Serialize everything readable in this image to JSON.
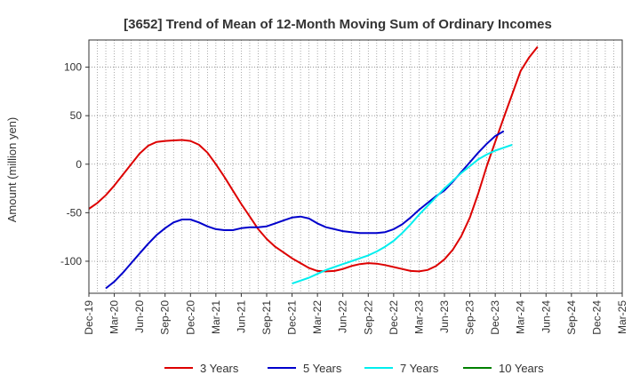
{
  "chart_data": {
    "type": "line",
    "title": "[3652]  Trend of Mean of 12-Month Moving Sum of Ordinary Incomes",
    "xlabel": "",
    "ylabel": "Amount (million yen)",
    "ylim": [
      -133,
      128
    ],
    "yticks": [
      100,
      50,
      0,
      -50,
      -100
    ],
    "ytick_labels": [
      "100",
      "50",
      "0",
      "-50",
      "-100"
    ],
    "x_range_months": [
      0,
      63
    ],
    "xticks": [
      0,
      3,
      6,
      9,
      12,
      15,
      18,
      21,
      24,
      27,
      30,
      33,
      36,
      39,
      42,
      45,
      48,
      51,
      54,
      57,
      60,
      63
    ],
    "xtick_labels": [
      "Dec-19",
      "Mar-20",
      "Jun-20",
      "Sep-20",
      "Dec-20",
      "Mar-21",
      "Jun-21",
      "Sep-21",
      "Dec-21",
      "Mar-22",
      "Jun-22",
      "Sep-22",
      "Dec-22",
      "Mar-23",
      "Jun-23",
      "Sep-23",
      "Dec-23",
      "Mar-24",
      "Jun-24",
      "Sep-24",
      "Dec-24",
      "Mar-25"
    ],
    "grid": true,
    "legend_position": "bottom",
    "series": [
      {
        "name": "3 Years",
        "color": "#dd0000",
        "x": [
          0,
          1,
          2,
          3,
          4,
          5,
          6,
          7,
          8,
          9,
          10,
          11,
          12,
          13,
          14,
          15,
          16,
          17,
          18,
          19,
          20,
          21,
          22,
          23,
          24,
          25,
          26,
          27,
          28,
          29,
          30,
          31,
          32,
          33,
          34,
          35,
          36,
          37,
          38,
          39,
          40,
          41,
          42,
          43,
          44,
          45,
          46,
          47,
          48,
          49,
          50,
          51,
          52,
          53,
          54,
          55,
          56,
          57,
          58,
          59,
          60
        ],
        "values": [
          -46,
          -40,
          -32,
          -22,
          -11,
          0,
          11,
          19,
          23,
          24,
          24.5,
          25,
          24,
          20,
          12,
          0,
          -13,
          -27,
          -41,
          -54,
          -67,
          -77,
          -85,
          -91,
          -97,
          -102,
          -107,
          -110,
          -110.5,
          -110,
          -108,
          -105,
          -103,
          -102,
          -102.5,
          -104,
          -106,
          -108,
          -110,
          -110.5,
          -109,
          -105,
          -98,
          -88,
          -74,
          -55,
          -30,
          -2,
          23,
          48,
          72,
          96,
          110,
          121,
          null,
          null,
          null,
          null,
          null,
          null,
          null
        ]
      },
      {
        "name": "5 Years",
        "color": "#0000cc",
        "x": [
          2,
          3,
          4,
          5,
          6,
          7,
          8,
          9,
          10,
          11,
          12,
          13,
          14,
          15,
          16,
          17,
          18,
          19,
          20,
          21,
          22,
          23,
          24,
          25,
          26,
          27,
          28,
          29,
          30,
          31,
          32,
          33,
          34,
          35,
          36,
          37,
          38,
          39,
          40,
          41,
          42,
          43,
          44,
          45,
          46,
          47,
          48,
          49,
          50,
          51,
          52,
          53,
          54,
          55,
          56,
          57,
          58,
          59,
          60
        ],
        "values": [
          -128,
          -121,
          -112,
          -102,
          -92,
          -82,
          -73,
          -66,
          -60,
          -57,
          -57,
          -60,
          -64,
          -67,
          -68,
          -68,
          -66,
          -65,
          -65,
          -64,
          -61,
          -58,
          -55,
          -54,
          -56,
          -61,
          -65,
          -67,
          -69,
          -70,
          -71,
          -71,
          -71,
          -70,
          -67,
          -62,
          -55,
          -47,
          -40,
          -33,
          -27,
          -18,
          -8,
          2,
          12,
          21,
          29,
          34,
          null,
          null,
          null,
          null,
          null,
          null,
          null,
          null,
          null,
          null,
          null
        ]
      },
      {
        "name": "7 Years",
        "color": "#00eeee",
        "x": [
          24,
          25,
          26,
          27,
          28,
          29,
          30,
          31,
          32,
          33,
          34,
          35,
          36,
          37,
          38,
          39,
          40,
          41,
          42,
          43,
          44,
          45,
          46,
          47,
          48,
          49,
          50,
          51,
          52,
          53,
          54,
          55,
          56,
          57,
          58,
          59,
          60
        ],
        "values": [
          -123,
          -120,
          -117,
          -113,
          -109,
          -106,
          -103,
          -100,
          -97,
          -94,
          -90,
          -85,
          -79,
          -71,
          -62,
          -52,
          -43,
          -34,
          -25,
          -17,
          -9,
          -2,
          5,
          10,
          14,
          17,
          20,
          null,
          null,
          null,
          null,
          null,
          null,
          null,
          null,
          null,
          null
        ]
      },
      {
        "name": "10 Years",
        "color": "#008000",
        "x": [],
        "values": []
      }
    ]
  }
}
